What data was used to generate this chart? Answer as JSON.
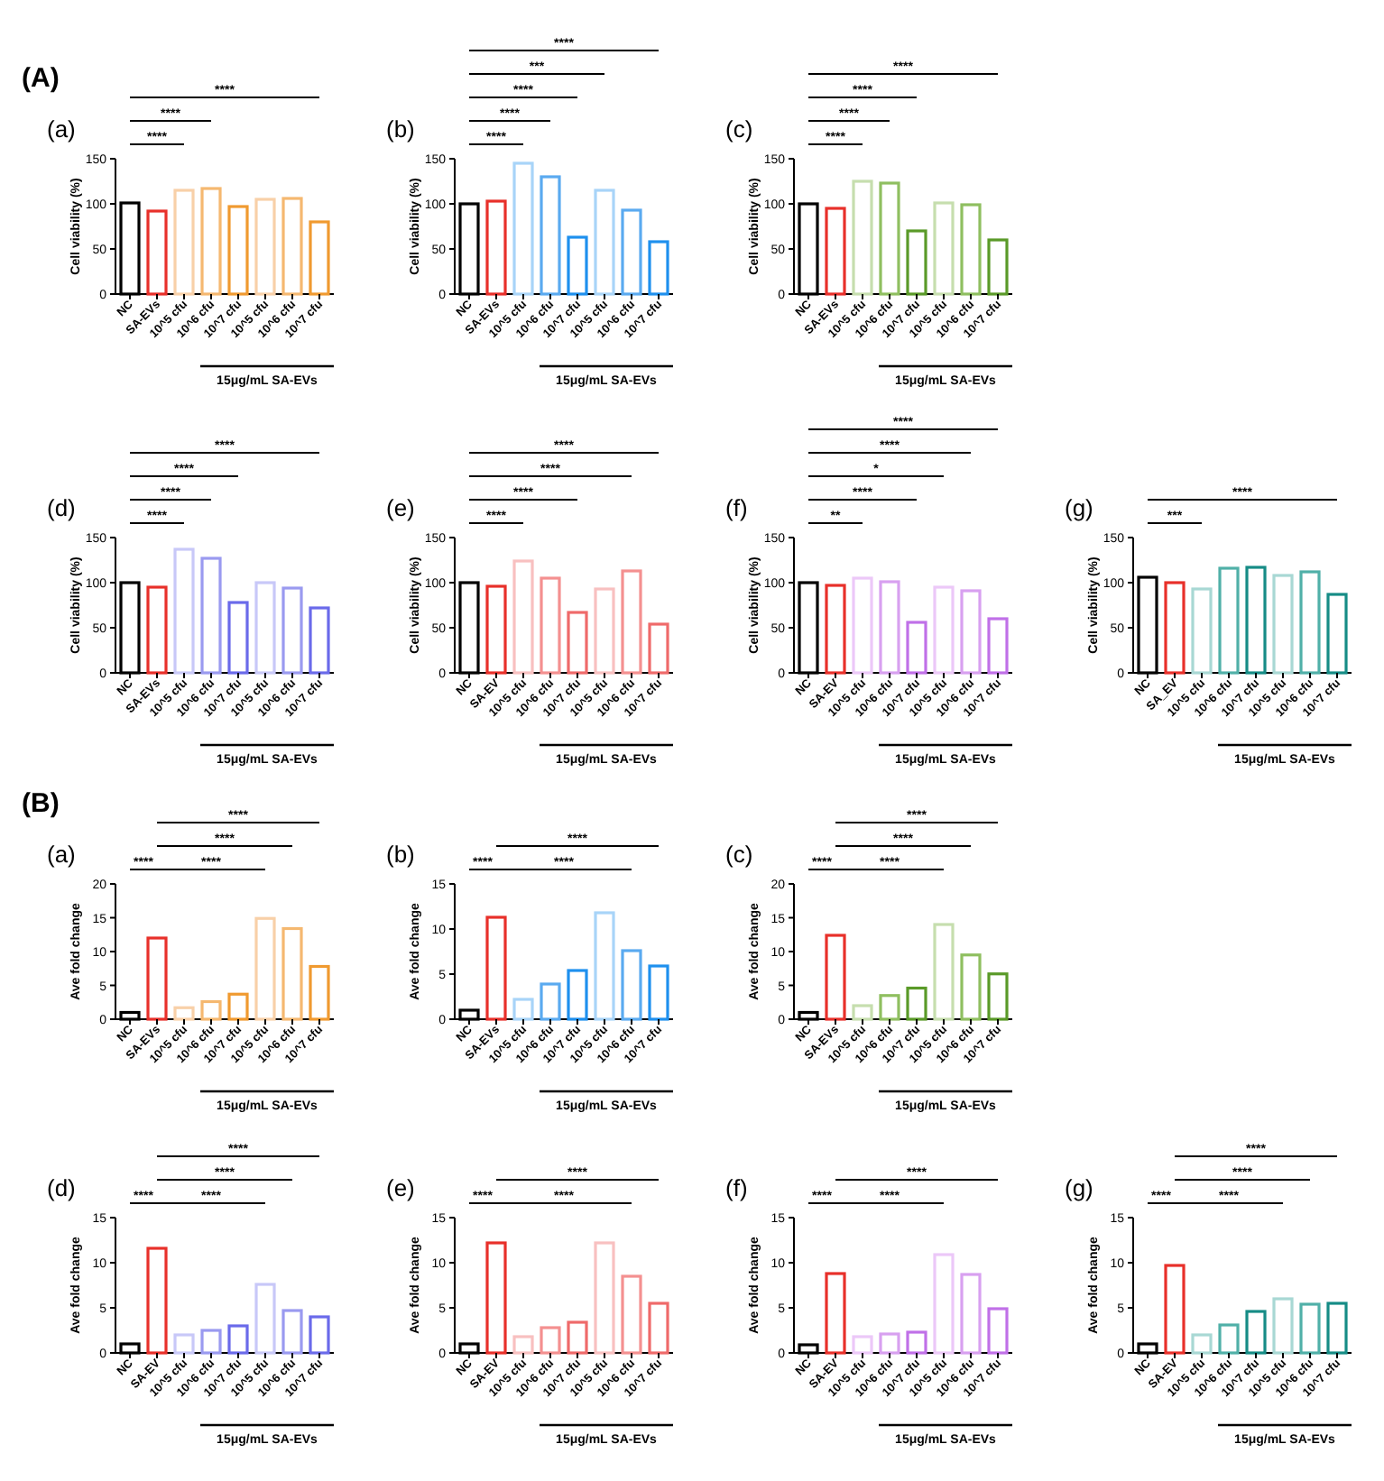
{
  "chart_data": [
    {
      "type": "bar",
      "title": "(a)",
      "ylabel": "Cell viability (%)",
      "xlabel": "15μg/mL SA-EVs",
      "categories": [
        "NC",
        "SA-EVs",
        "10^5 cfu",
        "10^6 cfu",
        "10^7 cfu",
        "10^5 cfu",
        "10^6 cfu",
        "10^7 cfu"
      ],
      "values": [
        101,
        92,
        115,
        117,
        97,
        105,
        106,
        80
      ],
      "colors": [
        "#000000",
        "#e8302a",
        "#f8d0a8",
        "#f5b870",
        "#f09a30",
        "#f8d0a8",
        "#f5b870",
        "#f09a30"
      ],
      "ylim": [
        0,
        150
      ],
      "yticks": [
        0,
        50,
        100,
        150
      ],
      "annotations": [
        "(A)",
        "****",
        "****",
        "****"
      ]
    },
    {
      "type": "bar",
      "title": "(b)",
      "ylabel": "Cell viability (%)",
      "xlabel": "15μg/mL SA-EVs",
      "categories": [
        "NC",
        "SA-EVs",
        "10^5 cfu",
        "10^6 cfu",
        "10^7 cfu",
        "10^5 cfu",
        "10^6 cfu",
        "10^7 cfu"
      ],
      "values": [
        100,
        103,
        145,
        130,
        63,
        115,
        93,
        58
      ],
      "colors": [
        "#000000",
        "#e8302a",
        "#a8d4f8",
        "#5aaaf0",
        "#1e90ee",
        "#a8d4f8",
        "#5aaaf0",
        "#1e90ee"
      ],
      "ylim": [
        0,
        150
      ],
      "yticks": [
        0,
        50,
        100,
        150
      ],
      "annotations": [
        "****",
        "****",
        "****",
        "***",
        "****"
      ]
    },
    {
      "type": "bar",
      "title": "(c)",
      "ylabel": "Cell viability (%)",
      "xlabel": "15μg/mL SA-EVs",
      "categories": [
        "NC",
        "SA-EVs",
        "10^5 cfu",
        "10^6 cfu",
        "10^7 cfu",
        "10^5 cfu",
        "10^6 cfu",
        "10^7 cfu"
      ],
      "values": [
        100,
        95,
        125,
        123,
        70,
        101,
        99,
        60
      ],
      "colors": [
        "#000000",
        "#e8302a",
        "#c6deae",
        "#8fbf60",
        "#5a9a28",
        "#c6deae",
        "#8fbf60",
        "#5a9a28"
      ],
      "ylim": [
        0,
        150
      ],
      "yticks": [
        0,
        50,
        100,
        150
      ],
      "annotations": [
        "****",
        "****",
        "****",
        "****"
      ]
    },
    {
      "type": "bar",
      "title": "(d)",
      "ylabel": "Cell viability (%)",
      "xlabel": "15μg/mL SA-EVs",
      "categories": [
        "NC",
        "SA-EVs",
        "10^5 cfu",
        "10^6 cfu",
        "10^7 cfu",
        "10^5 cfu",
        "10^6 cfu",
        "10^7 cfu"
      ],
      "values": [
        100,
        95,
        137,
        127,
        78,
        100,
        94,
        72
      ],
      "colors": [
        "#000000",
        "#e8302a",
        "#c8c8f8",
        "#9a9af0",
        "#6a6aea",
        "#c8c8f8",
        "#9a9af0",
        "#6a6aea"
      ],
      "ylim": [
        0,
        150
      ],
      "yticks": [
        0,
        50,
        100,
        150
      ],
      "annotations": [
        "****",
        "****",
        "****",
        "****"
      ]
    },
    {
      "type": "bar",
      "title": "(e)",
      "ylabel": "Cell viability (%)",
      "xlabel": "15μg/mL SA-EVs",
      "categories": [
        "NC",
        "SA-EV",
        "10^5 cfu",
        "10^6 cfu",
        "10^7 cfu",
        "10^5 cfu",
        "10^6 cfu",
        "10^7 cfu"
      ],
      "values": [
        100,
        96,
        124,
        105,
        67,
        93,
        113,
        54
      ],
      "colors": [
        "#000000",
        "#e8302a",
        "#f8c0c0",
        "#f49090",
        "#ef6a6a",
        "#f8c0c0",
        "#f49090",
        "#ef6a6a"
      ],
      "ylim": [
        0,
        150
      ],
      "yticks": [
        0,
        50,
        100,
        150
      ],
      "annotations": [
        "****",
        "****",
        "****",
        "****"
      ]
    },
    {
      "type": "bar",
      "title": "(f)",
      "ylabel": "Cell viability (%)",
      "xlabel": "15μg/mL SA-EVs",
      "categories": [
        "NC",
        "SA-EV",
        "10^5 cfu",
        "10^6 cfu",
        "10^7 cfu",
        "10^5 cfu",
        "10^6 cfu",
        "10^7 cfu"
      ],
      "values": [
        100,
        97,
        105,
        101,
        56,
        95,
        91,
        60
      ],
      "colors": [
        "#000000",
        "#e8302a",
        "#ecc8f8",
        "#d8a0f0",
        "#c070e8",
        "#ecc8f8",
        "#d8a0f0",
        "#c070e8"
      ],
      "ylim": [
        0,
        150
      ],
      "yticks": [
        0,
        50,
        100,
        150
      ],
      "annotations": [
        "**",
        "****",
        "*",
        "****",
        "****"
      ]
    },
    {
      "type": "bar",
      "title": "(g)",
      "ylabel": "Cell viability (%)",
      "xlabel": "15μg/mL SA-EVs",
      "categories": [
        "NC",
        "SA_EV",
        "10^5 cfu",
        "10^6 cfu",
        "10^7 cfu",
        "10^5 cfu",
        "10^6 cfu",
        "10^7 cfu"
      ],
      "values": [
        106,
        100,
        93,
        116,
        117,
        108,
        112,
        87
      ],
      "colors": [
        "#000000",
        "#e8302a",
        "#a8d8d4",
        "#50b0a8",
        "#168c86",
        "#a8d8d4",
        "#50b0a8",
        "#168c86"
      ],
      "ylim": [
        0,
        150
      ],
      "yticks": [
        0,
        50,
        100,
        150
      ],
      "annotations": [
        "***",
        "****"
      ]
    },
    {
      "type": "bar",
      "title": "(a)",
      "ylabel": "Ave fold change",
      "xlabel": "15μg/mL SA-EVs",
      "categories": [
        "NC",
        "SA-EVs",
        "10^5 cfu",
        "10^6 cfu",
        "10^7 cfu",
        "10^5 cfu",
        "10^6 cfu",
        "10^7 cfu"
      ],
      "values": [
        1.0,
        12.0,
        1.7,
        2.6,
        3.7,
        14.9,
        13.4,
        7.8
      ],
      "colors": [
        "#000000",
        "#e8302a",
        "#f8d0a8",
        "#f5b870",
        "#f09a30",
        "#f8d0a8",
        "#f5b870",
        "#f09a30"
      ],
      "ylim": [
        0,
        20
      ],
      "yticks": [
        0,
        5,
        10,
        15,
        20
      ],
      "annotations": [
        "(B)",
        "****",
        "****",
        "****",
        "****"
      ]
    },
    {
      "type": "bar",
      "title": "(b)",
      "ylabel": "Ave fold change",
      "xlabel": "15μg/mL SA-EVs",
      "categories": [
        "NC",
        "SA-EVs",
        "10^5 cfu",
        "10^6 cfu",
        "10^7 cfu",
        "10^5 cfu",
        "10^6 cfu",
        "10^7 cfu"
      ],
      "values": [
        1.0,
        11.3,
        2.2,
        3.9,
        5.4,
        11.8,
        7.6,
        5.9
      ],
      "colors": [
        "#000000",
        "#e8302a",
        "#a8d4f8",
        "#5aaaf0",
        "#1e90ee",
        "#a8d4f8",
        "#5aaaf0",
        "#1e90ee"
      ],
      "ylim": [
        0,
        15
      ],
      "yticks": [
        0,
        5,
        10,
        15
      ],
      "annotations": [
        "****",
        "****",
        "****"
      ]
    },
    {
      "type": "bar",
      "title": "(c)",
      "ylabel": "Ave fold change",
      "xlabel": "15μg/mL SA-EVs",
      "categories": [
        "NC",
        "SA-EVs",
        "10^5 cfu",
        "10^6 cfu",
        "10^7 cfu",
        "10^5 cfu",
        "10^6 cfu",
        "10^7 cfu"
      ],
      "values": [
        1.0,
        12.4,
        2.0,
        3.5,
        4.6,
        14.0,
        9.5,
        6.7
      ],
      "colors": [
        "#000000",
        "#e8302a",
        "#c6deae",
        "#8fbf60",
        "#5a9a28",
        "#c6deae",
        "#8fbf60",
        "#5a9a28"
      ],
      "ylim": [
        0,
        20
      ],
      "yticks": [
        0,
        5,
        10,
        15,
        20
      ],
      "annotations": [
        "****",
        "****",
        "****",
        "****"
      ]
    },
    {
      "type": "bar",
      "title": "(d)",
      "ylabel": "Ave fold change",
      "xlabel": "15μg/mL SA-EVs",
      "categories": [
        "NC",
        "SA-EV",
        "10^5 cfu",
        "10^6 cfu",
        "10^7 cfu",
        "10^5 cfu",
        "10^6 cfu",
        "10^7 cfu"
      ],
      "values": [
        1.0,
        11.6,
        2.0,
        2.5,
        3.0,
        7.6,
        4.7,
        4.0
      ],
      "colors": [
        "#000000",
        "#e8302a",
        "#c8c8f8",
        "#9a9af0",
        "#6a6aea",
        "#c8c8f8",
        "#9a9af0",
        "#6a6aea"
      ],
      "ylim": [
        0,
        15
      ],
      "yticks": [
        0,
        5,
        10,
        15
      ],
      "annotations": [
        "****",
        "****",
        "****",
        "****"
      ]
    },
    {
      "type": "bar",
      "title": "(e)",
      "ylabel": "Ave fold change",
      "xlabel": "15μg/mL SA-EVs",
      "categories": [
        "NC",
        "SA-EV",
        "10^5 cfu",
        "10^6 cfu",
        "10^7 cfu",
        "10^5 cfu",
        "10^6 cfu",
        "10^7 cfu"
      ],
      "values": [
        1.0,
        12.2,
        1.8,
        2.8,
        3.4,
        12.2,
        8.5,
        5.5
      ],
      "colors": [
        "#000000",
        "#e8302a",
        "#f8c0c0",
        "#f49090",
        "#ef6a6a",
        "#f8c0c0",
        "#f49090",
        "#ef6a6a"
      ],
      "ylim": [
        0,
        15
      ],
      "yticks": [
        0,
        5,
        10,
        15
      ],
      "annotations": [
        "****",
        "****",
        "****"
      ]
    },
    {
      "type": "bar",
      "title": "(f)",
      "ylabel": "Ave fold change",
      "xlabel": "15μg/mL SA-EVs",
      "categories": [
        "NC",
        "SA-EV",
        "10^5 cfu",
        "10^6 cfu",
        "10^7 cfu",
        "10^5 cfu",
        "10^6 cfu",
        "10^7 cfu"
      ],
      "values": [
        0.9,
        8.8,
        1.8,
        2.1,
        2.3,
        10.9,
        8.7,
        4.9
      ],
      "colors": [
        "#000000",
        "#e8302a",
        "#ecc8f8",
        "#d8a0f0",
        "#c070e8",
        "#ecc8f8",
        "#d8a0f0",
        "#c070e8"
      ],
      "ylim": [
        0,
        15
      ],
      "yticks": [
        0,
        5,
        10,
        15
      ],
      "annotations": [
        "****",
        "****",
        "****"
      ]
    },
    {
      "type": "bar",
      "title": "(g)",
      "ylabel": "Ave fold change",
      "xlabel": "15μg/mL SA-EVs",
      "categories": [
        "NC",
        "SA-EV",
        "10^5 cfu",
        "10^6 cfu",
        "10^7 cfu",
        "10^5 cfu",
        "10^6 cfu",
        "10^7 cfu"
      ],
      "values": [
        1.0,
        9.7,
        2.0,
        3.1,
        4.6,
        6.0,
        5.4,
        5.5
      ],
      "colors": [
        "#000000",
        "#e8302a",
        "#a8d8d4",
        "#50b0a8",
        "#168c86",
        "#a8d8d4",
        "#50b0a8",
        "#168c86"
      ],
      "ylim": [
        0,
        15
      ],
      "yticks": [
        0,
        5,
        10,
        15
      ],
      "annotations": [
        "****",
        "****",
        "****",
        "****"
      ]
    }
  ]
}
